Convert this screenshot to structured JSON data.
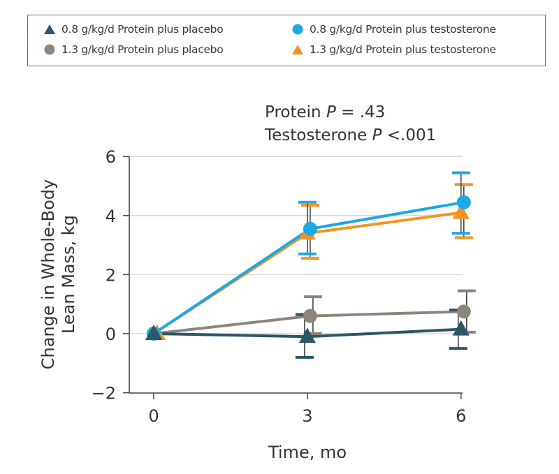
{
  "chart_data": {
    "type": "line",
    "title": "",
    "annotations": [
      "Protein P = .43",
      "Testosterone P <.001"
    ],
    "xlabel": "Time, mo",
    "ylabel": [
      "Change in Whole-Body",
      "Lean Mass, kg"
    ],
    "x": [
      0,
      3,
      6
    ],
    "x_ticks": [
      "0",
      "3",
      "6"
    ],
    "y_ticks": [
      "6",
      "4",
      "2",
      "0",
      "−2"
    ],
    "ylim": [
      -2,
      6
    ],
    "xlim": [
      -0.4,
      6
    ],
    "grid": "horizontal",
    "legend_position": "top",
    "series": [
      {
        "name": "0.8 g/kg/d Protein plus placebo",
        "marker": "triangle",
        "color": "#2b5766",
        "values": [
          0,
          -0.1,
          0.15
        ],
        "ci_upper": [
          null,
          0.65,
          0.8
        ],
        "ci_lower": [
          null,
          -0.8,
          -0.5
        ]
      },
      {
        "name": "1.3 g/kg/d Protein plus placebo",
        "marker": "circle",
        "color": "#8c857c",
        "values": [
          0,
          0.6,
          0.75
        ],
        "ci_upper": [
          null,
          1.25,
          1.45
        ],
        "ci_lower": [
          null,
          0.0,
          0.05
        ]
      },
      {
        "name": "0.8 g/kg/d Protein plus testosterone",
        "marker": "circle",
        "color": "#1ba8e6",
        "values": [
          0,
          3.55,
          4.45
        ],
        "ci_upper": [
          null,
          4.45,
          5.45
        ],
        "ci_lower": [
          null,
          2.7,
          3.4
        ]
      },
      {
        "name": "1.3 g/kg/d Protein plus testosterone",
        "marker": "triangle",
        "color": "#f29423",
        "values": [
          0,
          3.4,
          4.1
        ],
        "ci_upper": [
          null,
          4.35,
          5.05
        ],
        "ci_lower": [
          null,
          2.55,
          3.25
        ]
      }
    ]
  },
  "legend": {
    "items": [
      {
        "label": "0.8 g/kg/d Protein plus placebo"
      },
      {
        "label": "1.3 g/kg/d Protein plus placebo"
      },
      {
        "label": "0.8 g/kg/d Protein plus testosterone"
      },
      {
        "label": "1.3 g/kg/d Protein plus testosterone"
      }
    ]
  },
  "pvalues": {
    "protein_label": "Protein ",
    "protein_p": "P",
    "protein_value": " = .43",
    "testo_label": "Testosterone ",
    "testo_p": "P",
    "testo_value": " <.001"
  }
}
